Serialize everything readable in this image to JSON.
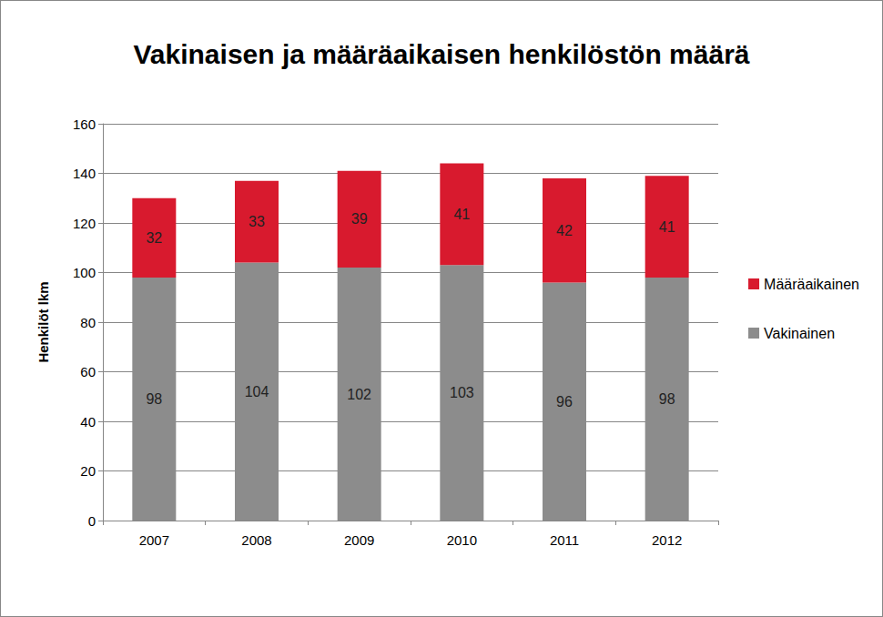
{
  "chart_data": {
    "type": "bar",
    "title": "Vakinaisen ja määräaikaisen henkilöstön määrä",
    "y_label": "Henkilöt lkm",
    "categories": [
      "2007",
      "2008",
      "2009",
      "2010",
      "2011",
      "2012"
    ],
    "series": [
      {
        "name": "Vakinainen",
        "color": "#8c8c8c",
        "values": [
          98,
          104,
          102,
          103,
          96,
          98
        ]
      },
      {
        "name": "Määräaikainen",
        "color": "#d81a2e",
        "values": [
          32,
          33,
          39,
          41,
          42,
          41
        ]
      }
    ],
    "ylim": [
      0,
      160
    ],
    "yticks": [
      0,
      20,
      40,
      60,
      80,
      100,
      120,
      140,
      160
    ],
    "stacked": true,
    "data_labels": true,
    "grid": true,
    "legend": "right"
  }
}
